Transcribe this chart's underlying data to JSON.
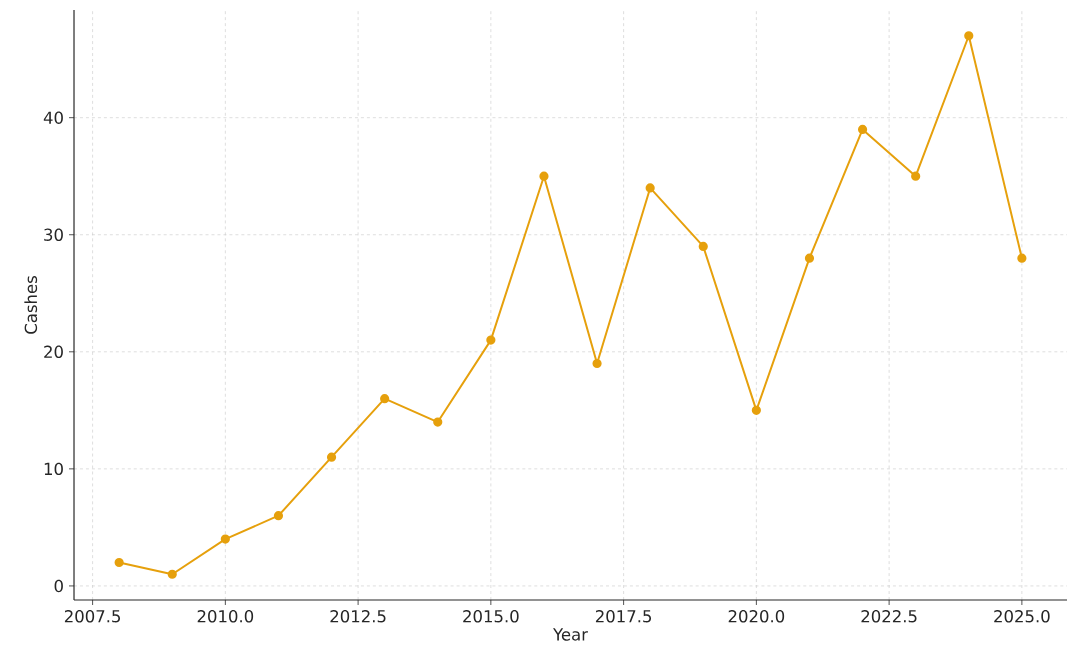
{
  "chart_data": {
    "type": "line",
    "xlabel": "Year",
    "ylabel": "Cashes",
    "x": [
      2008,
      2009,
      2010,
      2011,
      2012,
      2013,
      2014,
      2015,
      2016,
      2017,
      2018,
      2019,
      2020,
      2021,
      2022,
      2023,
      2024,
      2025
    ],
    "series": [
      {
        "color": "#e6a00c",
        "values": [
          2,
          1,
          4,
          6,
          11,
          16,
          14,
          21,
          35,
          19,
          34,
          29,
          15,
          28,
          39,
          35,
          47,
          28
        ]
      }
    ],
    "xlim": [
      2007.15,
      2025.85
    ],
    "ylim": [
      -1.2,
      49.2
    ],
    "xticks": [
      2007.5,
      {
        "value": 2010,
        "label": "2010.0"
      },
      2012.5,
      {
        "value": 2015,
        "label": "2015.0"
      },
      2017.5,
      {
        "value": 2020,
        "label": "2020.0"
      },
      2022.5,
      {
        "value": 2025,
        "label": "2025.0"
      }
    ],
    "yticks": [
      0,
      10,
      20,
      30,
      40
    ],
    "grid": true,
    "marker": "circle",
    "line_style": "solid"
  }
}
